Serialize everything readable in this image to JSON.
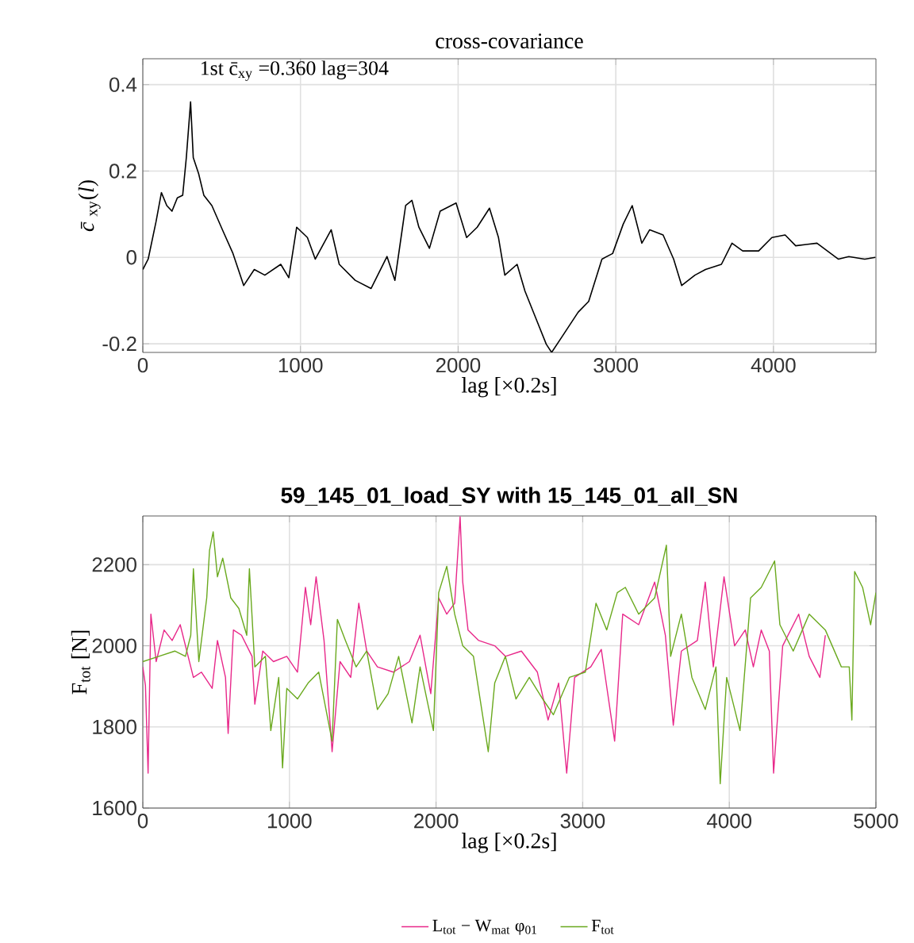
{
  "chart_data": [
    {
      "type": "line",
      "title": "cross-covariance",
      "xlabel": "lag [×0.2s]",
      "ylabel": "*c̄*$_{xy}$(*l*)",
      "annotations": [
        "1st c̄$_{xy}$ =0.360 lag=304"
      ],
      "xlim": [
        0,
        4650
      ],
      "ylim": [
        -0.22,
        0.46
      ],
      "xticks": [
        0,
        1000,
        2000,
        3000,
        4000
      ],
      "yticks": [
        -0.2,
        0,
        0.2,
        0.4
      ],
      "grid": true,
      "legend": false,
      "series": [
        {
          "color": "#000000",
          "x": [
            0,
            34,
            84,
            118,
            152,
            185,
            219,
            253,
            276,
            303,
            320,
            354,
            387,
            438,
            505,
            572,
            640,
            707,
            774,
            875,
            926,
            976,
            1044,
            1094,
            1195,
            1246,
            1347,
            1448,
            1549,
            1599,
            1667,
            1707,
            1751,
            1818,
            1886,
            1987,
            2054,
            2121,
            2199,
            2256,
            2296,
            2374,
            2424,
            2492,
            2559,
            2593,
            2660,
            2761,
            2828,
            2912,
            2980,
            3047,
            3104,
            3165,
            3215,
            3300,
            3367,
            3418,
            3502,
            3569,
            3670,
            3737,
            3805,
            3906,
            3990,
            4074,
            4141,
            4276,
            4411,
            4478,
            4579,
            4646
          ],
          "values": [
            -0.028,
            -0.004,
            0.083,
            0.15,
            0.12,
            0.107,
            0.138,
            0.144,
            0.231,
            0.36,
            0.231,
            0.194,
            0.144,
            0.12,
            0.064,
            0.009,
            -0.065,
            -0.028,
            -0.041,
            -0.016,
            -0.047,
            0.07,
            0.046,
            -0.004,
            0.064,
            -0.016,
            -0.053,
            -0.072,
            0.002,
            -0.053,
            0.12,
            0.132,
            0.07,
            0.021,
            0.107,
            0.126,
            0.046,
            0.07,
            0.114,
            0.046,
            -0.041,
            -0.016,
            -0.078,
            -0.14,
            -0.201,
            -0.22,
            -0.183,
            -0.127,
            -0.102,
            -0.004,
            0.009,
            0.077,
            0.12,
            0.033,
            0.064,
            0.052,
            -0.004,
            -0.065,
            -0.041,
            -0.028,
            -0.016,
            0.033,
            0.015,
            0.015,
            0.046,
            0.052,
            0.027,
            0.033,
            -0.004,
            0.002,
            -0.004,
            0
          ]
        }
      ]
    },
    {
      "type": "line",
      "title": "**59_145_01_load_SY with 15_145_01_all_SN**",
      "xlabel": "lag [×0.2s]",
      "ylabel": "F$_{tot}$ [N]",
      "xlim": [
        0,
        5000
      ],
      "ylim": [
        1600,
        2320
      ],
      "xticks": [
        0,
        1000,
        2000,
        3000,
        4000,
        5000
      ],
      "yticks": [
        1600,
        1800,
        2000,
        2200
      ],
      "grid": true,
      "legend": "bottom",
      "series": [
        {
          "name": "L$_{tot}$ − W$_{mat}$ φ$_{01}$",
          "color": "#e8288a",
          "x": [
            0,
            18,
            36,
            55,
            91,
            145,
            200,
            255,
            309,
            345,
            400,
            473,
            509,
            564,
            582,
            618,
            673,
            745,
            764,
            818,
            891,
            982,
            1055,
            1109,
            1145,
            1182,
            1236,
            1291,
            1345,
            1418,
            1473,
            1527,
            1600,
            1709,
            1818,
            1891,
            1964,
            2018,
            2073,
            2127,
            2164,
            2182,
            2218,
            2291,
            2400,
            2473,
            2582,
            2691,
            2764,
            2836,
            2891,
            2945,
            3055,
            3127,
            3218,
            3273,
            3382,
            3491,
            3564,
            3618,
            3673,
            3782,
            3836,
            3891,
            3964,
            4036,
            4109,
            4164,
            4218,
            4273,
            4302,
            4364,
            4473,
            4545,
            4618,
            4655
          ],
          "values": [
            1948,
            1902,
            1686,
            2078,
            1961,
            2039,
            2013,
            2052,
            1974,
            1922,
            1935,
            1895,
            2013,
            1922,
            1784,
            2039,
            2026,
            1974,
            1856,
            1987,
            1961,
            1974,
            1935,
            2144,
            2052,
            2170,
            2013,
            1739,
            1961,
            1922,
            2105,
            1987,
            1948,
            1935,
            1961,
            2026,
            1882,
            2118,
            2078,
            2105,
            2318,
            2157,
            2039,
            2013,
            2000,
            1974,
            1987,
            1935,
            1817,
            1908,
            1686,
            1922,
            1948,
            1991,
            1765,
            2078,
            2052,
            2157,
            2026,
            1804,
            1987,
            2013,
            2157,
            1948,
            2170,
            2000,
            2039,
            1948,
            2039,
            1987,
            1686,
            2000,
            2078,
            1974,
            1922,
            2026
          ]
        },
        {
          "name": "F$_{tot}$",
          "color": "#6aa91e",
          "x": [
            0,
            109,
            218,
            291,
            327,
            345,
            382,
            436,
            455,
            480,
            509,
            545,
            600,
            655,
            709,
            727,
            764,
            836,
            873,
            927,
            953,
            982,
            1055,
            1127,
            1200,
            1291,
            1327,
            1382,
            1455,
            1527,
            1600,
            1673,
            1745,
            1836,
            1891,
            1982,
            2018,
            2073,
            2127,
            2182,
            2255,
            2356,
            2400,
            2473,
            2545,
            2636,
            2727,
            2800,
            2909,
            3018,
            3091,
            3164,
            3236,
            3291,
            3382,
            3491,
            3571,
            3600,
            3673,
            3745,
            3836,
            3909,
            3938,
            3982,
            4073,
            4145,
            4218,
            4309,
            4345,
            4436,
            4545,
            4655,
            4764,
            4818,
            4836,
            4855,
            4909,
            4964,
            5000
          ],
          "values": [
            1961,
            1974,
            1987,
            1974,
            2026,
            2190,
            1961,
            2118,
            2235,
            2281,
            2170,
            2216,
            2118,
            2092,
            2026,
            2190,
            1948,
            1974,
            1791,
            1922,
            1699,
            1895,
            1869,
            1908,
            1935,
            1765,
            2065,
            2013,
            1948,
            1987,
            1843,
            1882,
            1974,
            1810,
            1948,
            1791,
            2131,
            2196,
            2078,
            2000,
            1974,
            1739,
            1908,
            1974,
            1869,
            1922,
            1869,
            1830,
            1922,
            1935,
            2105,
            2039,
            2131,
            2144,
            2078,
            2118,
            2248,
            1974,
            2078,
            1922,
            1843,
            1948,
            1660,
            1922,
            1791,
            2118,
            2144,
            2209,
            2052,
            1987,
            2078,
            2039,
            1948,
            1948,
            1817,
            2183,
            2144,
            2052,
            2131
          ]
        }
      ]
    }
  ]
}
